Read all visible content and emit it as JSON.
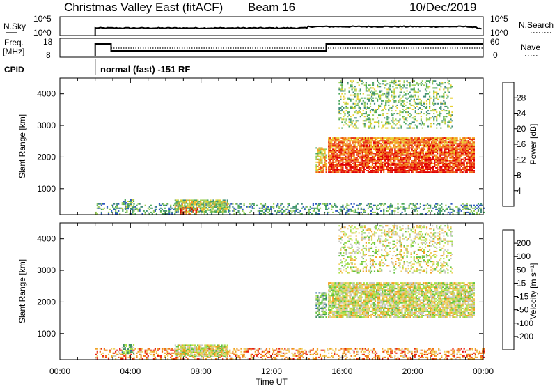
{
  "header": {
    "title": "Christmas Valley East (fitACF)",
    "beam": "Beam 16",
    "date": "10/Dec/2019"
  },
  "top_panels": {
    "nsky_label": "N.Sky",
    "nsky_ticks": [
      "10^5",
      "10^0"
    ],
    "nsearch_ticks": [
      "10^5",
      "10^0"
    ],
    "nsearch_label": "N.Search",
    "freq_label_line1": "Freq.",
    "freq_label_line2": "[MHz]",
    "freq_ticks": [
      "18",
      "8"
    ],
    "nave_ticks": [
      "60",
      "0"
    ],
    "nave_label": "Nave",
    "cpid_label": "CPID",
    "cpid_text": "normal (fast) -151 RF"
  },
  "chart_data": [
    {
      "type": "heatmap",
      "name": "power",
      "ylabel": "Slant Range [km]",
      "ylim": [
        180,
        4500
      ],
      "yticks": [
        "1000",
        "2000",
        "3000",
        "4000"
      ],
      "xlabel": "Time UT",
      "xlim_hours": [
        0,
        24
      ],
      "colorbar": {
        "label": "Power [dB]",
        "ticks": [
          "4",
          "8",
          "12",
          "16",
          "20",
          "24",
          "28"
        ],
        "range": [
          0,
          32
        ],
        "colors": [
          "#0022ee",
          "#2a55c0",
          "#3f8a7a",
          "#4aa85a",
          "#9ccf5a",
          "#e8d030",
          "#f5a020",
          "#f07018",
          "#e83010",
          "#e00000"
        ]
      },
      "regions": [
        {
          "t0": 2.0,
          "t1": 24.0,
          "r0": 180,
          "r1": 500,
          "level": 0.3,
          "density": 0.35
        },
        {
          "t0": 3.5,
          "t1": 4.2,
          "r0": 350,
          "r1": 650,
          "level": 0.35,
          "density": 0.6
        },
        {
          "t0": 6.5,
          "t1": 9.5,
          "r0": 250,
          "r1": 650,
          "level": 0.45,
          "density": 0.8
        },
        {
          "t0": 6.8,
          "t1": 7.8,
          "r0": 190,
          "r1": 400,
          "level": 0.85,
          "density": 0.6
        },
        {
          "t0": 14.5,
          "t1": 15.1,
          "r0": 1500,
          "r1": 2300,
          "level": 0.5,
          "density": 0.7
        },
        {
          "t0": 15.2,
          "t1": 23.5,
          "r0": 1500,
          "r1": 2600,
          "level": 0.7,
          "density": 0.85
        },
        {
          "t0": 15.8,
          "t1": 22.2,
          "r0": 2900,
          "r1": 4400,
          "level": 0.4,
          "density": 0.3
        }
      ]
    },
    {
      "type": "heatmap",
      "name": "velocity",
      "ylabel": "Slant Range [km]",
      "ylim": [
        180,
        4500
      ],
      "yticks": [
        "1000",
        "2000",
        "3000",
        "4000"
      ],
      "xlabel": "Time UT",
      "xlim_hours": [
        0,
        24
      ],
      "colorbar": {
        "label": "Velocity [m s⁻¹]",
        "ticks": [
          "200",
          "100",
          "50",
          "15",
          "-15",
          "-50",
          "-100",
          "-200"
        ],
        "colors": [
          "#2030a0",
          "#2e6aa0",
          "#3c9060",
          "#60c040",
          "#a8e048",
          "#c8c8c0",
          "#f0d060",
          "#f0a020",
          "#f07010",
          "#e82010",
          "#e00000"
        ]
      },
      "regions": [
        {
          "t0": 2.0,
          "t1": 24.0,
          "r0": 180,
          "r1": 500,
          "level": 0.72,
          "density": 0.4
        },
        {
          "t0": 3.5,
          "t1": 4.2,
          "r0": 350,
          "r1": 650,
          "level": 0.35,
          "density": 0.6
        },
        {
          "t0": 6.5,
          "t1": 9.5,
          "r0": 250,
          "r1": 650,
          "level": 0.5,
          "density": 0.8
        },
        {
          "t0": 14.5,
          "t1": 15.1,
          "r0": 1500,
          "r1": 2300,
          "level": 0.35,
          "density": 0.7
        },
        {
          "t0": 15.2,
          "t1": 23.5,
          "r0": 1500,
          "r1": 2600,
          "level": 0.5,
          "density": 0.85
        },
        {
          "t0": 15.8,
          "t1": 22.2,
          "r0": 2900,
          "r1": 4400,
          "level": 0.5,
          "density": 0.3
        }
      ]
    }
  ],
  "x_ticks": [
    "00:00",
    "04:00",
    "08:00",
    "12:00",
    "16:00",
    "20:00",
    "00:00"
  ],
  "x_label": "Time UT"
}
